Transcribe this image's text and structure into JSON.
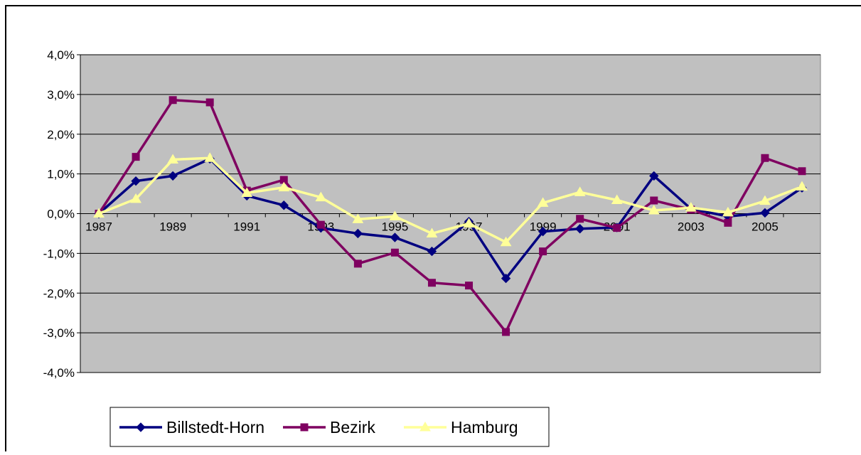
{
  "chart_data": {
    "type": "line",
    "categories": [
      "1987",
      null,
      "1989",
      null,
      "1991",
      null,
      "1993",
      null,
      "1995",
      null,
      "1997",
      null,
      "1999",
      null,
      "2001",
      null,
      "2003",
      null,
      "2005",
      null
    ],
    "series": [
      {
        "name": "Billstedt-Horn",
        "color": "#000080",
        "marker": "diamond",
        "values": [
          0,
          0.82,
          0.95,
          1.38,
          0.45,
          0.21,
          -0.36,
          -0.5,
          -0.6,
          -0.95,
          -0.2,
          -1.63,
          -0.45,
          -0.38,
          -0.35,
          0.95,
          0.12,
          -0.07,
          0.02,
          0.65
        ]
      },
      {
        "name": "Bezirk",
        "color": "#7f0060",
        "marker": "square",
        "values": [
          0,
          1.43,
          2.86,
          2.8,
          0.58,
          0.85,
          -0.28,
          -1.26,
          -0.98,
          -1.74,
          -1.81,
          -2.98,
          -0.95,
          -0.13,
          -0.36,
          0.33,
          0.1,
          -0.23,
          1.4,
          1.07
        ]
      },
      {
        "name": "Hamburg",
        "color": "#ffff99",
        "marker": "triangle",
        "values": [
          0,
          0.37,
          1.36,
          1.4,
          0.52,
          0.66,
          0.41,
          -0.14,
          -0.07,
          -0.5,
          -0.25,
          -0.72,
          0.27,
          0.54,
          0.34,
          0.08,
          0.15,
          0.03,
          0.32,
          0.68
        ]
      }
    ],
    "ylim": [
      -4,
      4
    ],
    "yticks": [
      {
        "value": -4,
        "label": "-4,0%"
      },
      {
        "value": -3,
        "label": "-3,0%"
      },
      {
        "value": -2,
        "label": "-2,0%"
      },
      {
        "value": -1,
        "label": "-1,0%"
      },
      {
        "value": 0,
        "label": "0,0%"
      },
      {
        "value": 1,
        "label": "1,0%"
      },
      {
        "value": 2,
        "label": "2,0%"
      },
      {
        "value": 3,
        "label": "3,0%"
      },
      {
        "value": 4,
        "label": "4,0%"
      }
    ],
    "grid": true,
    "plot_background": "#c0c0c0",
    "legend": "bottom"
  }
}
